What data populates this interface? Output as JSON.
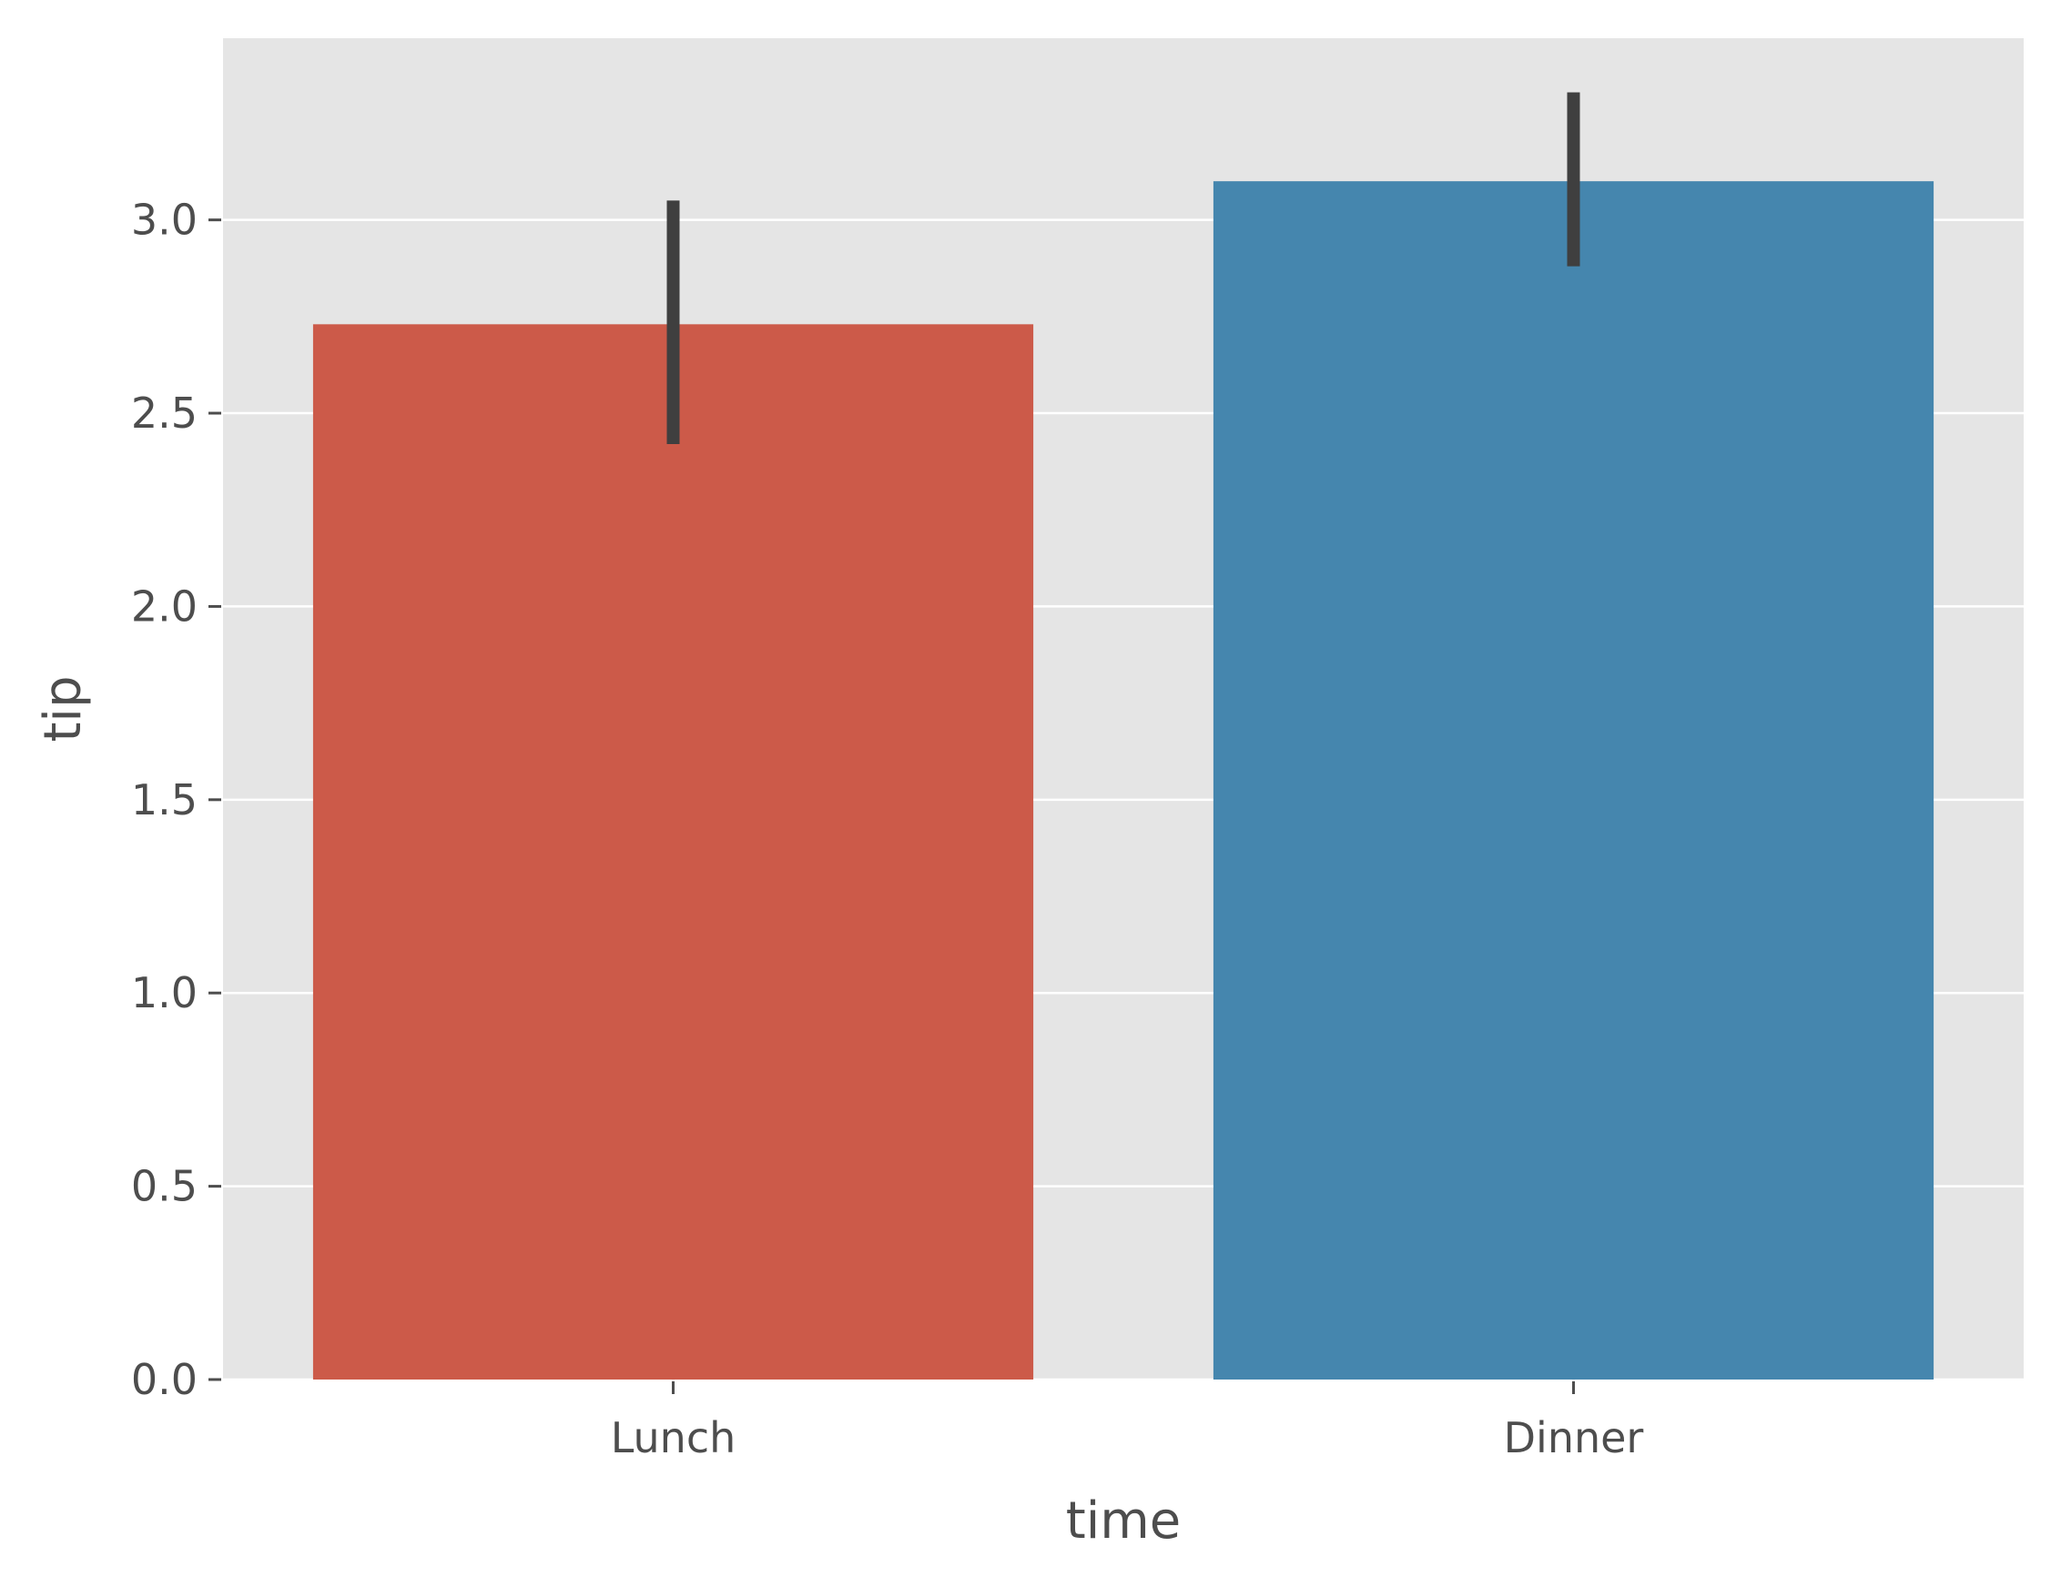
{
  "chart_data": {
    "type": "bar",
    "categories": [
      "Lunch",
      "Dinner"
    ],
    "values": [
      2.73,
      3.1
    ],
    "error_bars": [
      {
        "low": 2.42,
        "high": 3.05
      },
      {
        "low": 2.88,
        "high": 3.33
      }
    ],
    "colors": [
      "#cc5a49",
      "#4586ae"
    ],
    "xlabel": "time",
    "ylabel": "tip",
    "ylim": [
      0,
      3.47
    ],
    "yticks": [
      0.0,
      0.5,
      1.0,
      1.5,
      2.0,
      2.5,
      3.0
    ],
    "ytick_labels": [
      "0.0",
      "0.5",
      "1.0",
      "1.5",
      "2.0",
      "2.5",
      "3.0"
    ],
    "grid": true,
    "grid_axis": "y",
    "background_color": "#e5e5e5",
    "grid_color": "#ffffff",
    "errorbar_color": "#3f3f3f",
    "style": "ggplot"
  }
}
